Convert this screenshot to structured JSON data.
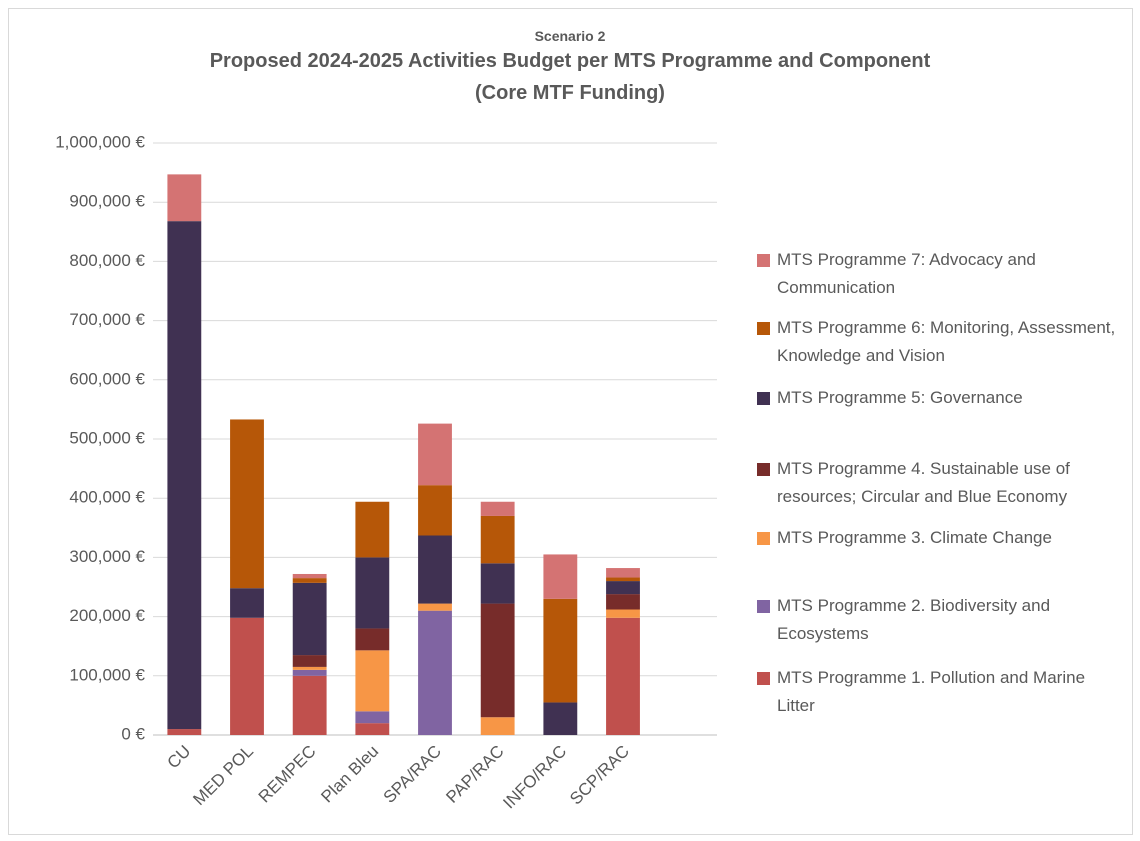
{
  "chart_data": {
    "type": "stacked_bar",
    "supertitle": "Scenario 2",
    "title": "Proposed 2024-2025 Activities Budget per MTS Programme and Component",
    "subtitle": "(Core MTF Funding)",
    "categories": [
      "CU",
      "MED POL",
      "REMPEC",
      "Plan Bleu",
      "SPA/RAC",
      "PAP/RAC",
      "INFO/RAC",
      "SCP/RAC",
      null
    ],
    "series": [
      {
        "name": "MTS Programme 1. Pollution and Marine Litter",
        "color": "#c0504d",
        "values": [
          10000,
          198000,
          100000,
          20000,
          0,
          0,
          0,
          198000,
          null
        ]
      },
      {
        "name": "MTS Programme 2. Biodiversity and Ecosystems",
        "color": "#8064a2",
        "values": [
          0,
          0,
          10000,
          20000,
          210000,
          0,
          0,
          0,
          null
        ]
      },
      {
        "name": "MTS Programme 3. Climate Change",
        "color": "#f79646",
        "values": [
          0,
          0,
          5000,
          103000,
          12000,
          30000,
          0,
          14000,
          null
        ]
      },
      {
        "name": "MTS Programme 4. Sustainable use of resources; Circular and Blue Economy",
        "color": "#772c2a",
        "values": [
          0,
          0,
          20000,
          37000,
          0,
          192000,
          0,
          26000,
          null
        ]
      },
      {
        "name": "MTS Programme 5: Governance",
        "color": "#403152",
        "values": [
          858000,
          50000,
          122000,
          120000,
          115000,
          68000,
          55000,
          22000,
          null
        ]
      },
      {
        "name": "MTS Programme 6: Monitoring, Assessment, Knowledge and Vision",
        "color": "#b65708",
        "values": [
          0,
          285000,
          8000,
          94000,
          85000,
          80000,
          175000,
          6000,
          null
        ]
      },
      {
        "name": "MTS Programme 7: Advocacy and Communication",
        "color": "#d47373",
        "values": [
          79000,
          0,
          7000,
          0,
          104000,
          24000,
          75000,
          16000,
          null
        ]
      }
    ],
    "ylim": [
      0,
      1000000
    ],
    "yticks": [
      {
        "value": 0,
        "label": "0 €"
      },
      {
        "value": 100000,
        "label": "100,000 €"
      },
      {
        "value": 200000,
        "label": "200,000 €"
      },
      {
        "value": 300000,
        "label": "300,000 €"
      },
      {
        "value": 400000,
        "label": "400,000 €"
      },
      {
        "value": 500000,
        "label": "500,000 €"
      },
      {
        "value": 600000,
        "label": "600,000 €"
      },
      {
        "value": 700000,
        "label": "700,000 €"
      },
      {
        "value": 800000,
        "label": "800,000 €"
      },
      {
        "value": 900000,
        "label": "900,000 €"
      },
      {
        "value": 1000000,
        "label": "1,000,000 €"
      }
    ],
    "grid": true,
    "legend": "right"
  }
}
